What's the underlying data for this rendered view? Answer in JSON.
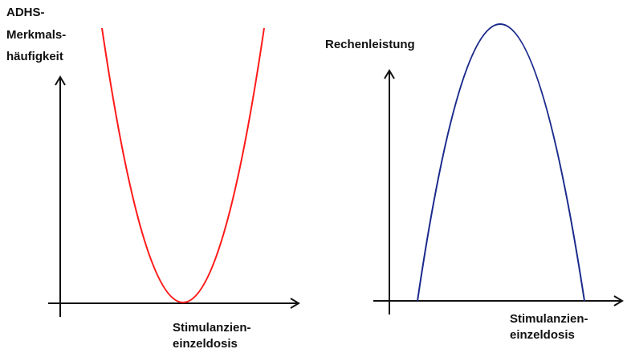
{
  "left": {
    "y_label": [
      "ADHS-",
      "Merkmals-",
      "häufigkeit"
    ],
    "x_label": [
      "Stimulanzien-",
      "einzeldosis"
    ]
  },
  "right": {
    "y_label": "Rechenleistung",
    "x_label": [
      "Stimulanzien-",
      "einzeldosis"
    ]
  }
}
